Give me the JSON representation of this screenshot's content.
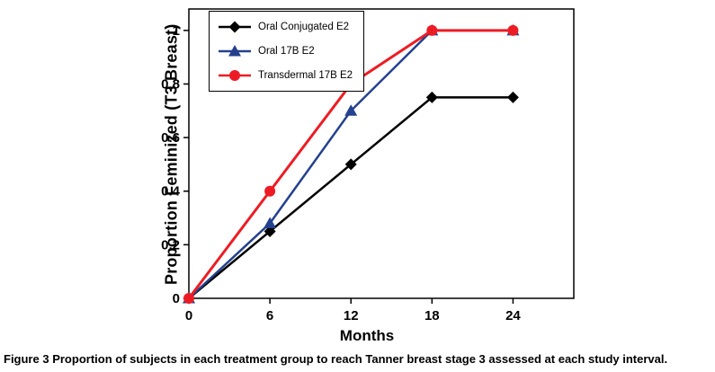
{
  "caption": {
    "label": "Figure 3",
    "text": "Proportion of subjects in each treatment group to reach Tanner breast stage 3 assessed at each study interval."
  },
  "chart_data": {
    "type": "line",
    "title": "",
    "xlabel": "Months",
    "ylabel": "Proportion Feminized (T3 Breast)",
    "x": [
      0,
      6,
      12,
      18,
      24
    ],
    "xticks": [
      0,
      6,
      12,
      18,
      24
    ],
    "yticks": [
      0,
      0.2,
      0.4,
      0.6,
      0.8,
      1
    ],
    "xlim": [
      0,
      28.5
    ],
    "ylim": [
      0,
      1.08
    ],
    "grid": false,
    "legend_position": "top-left",
    "series": [
      {
        "name": "Oral Conjugated E2",
        "marker": "diamond",
        "color": "#000000",
        "values": [
          0,
          0.25,
          0.5,
          0.75,
          0.75
        ]
      },
      {
        "name": "Oral 17B E2",
        "marker": "triangle",
        "color": "#24418e",
        "values": [
          0,
          0.28,
          0.7,
          1,
          1
        ]
      },
      {
        "name": "Transdermal 17B E2",
        "marker": "circle",
        "color": "#ed1c24",
        "values": [
          0,
          0.4,
          0.8,
          1,
          1
        ]
      }
    ]
  }
}
